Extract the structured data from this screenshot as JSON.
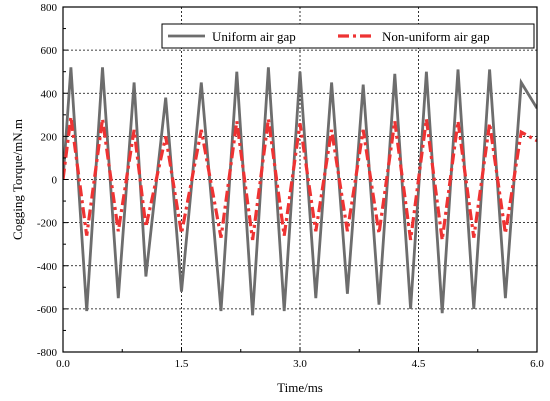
{
  "chart_data": {
    "type": "line",
    "xlabel": "Time/ms",
    "ylabel": "Cogging Torque/mN.m",
    "xlim": [
      0,
      6
    ],
    "ylim": [
      -800,
      800
    ],
    "x_ticks": [
      0,
      1.5,
      3,
      4.5,
      6
    ],
    "x_tick_labels": [
      "0.0",
      "1.5",
      "3.0",
      "4.5",
      "6.0"
    ],
    "y_ticks": [
      -800,
      -600,
      -400,
      -200,
      0,
      200,
      400,
      600,
      800
    ],
    "y_tick_labels": [
      "-800",
      "-600",
      "-400",
      "-200",
      "0",
      "200",
      "400",
      "600",
      "800"
    ],
    "grid": true,
    "legend_position": "top-right",
    "series": [
      {
        "name": "Uniform air gap",
        "color": "#6d6d6d",
        "style": "solid",
        "points": [
          [
            0.0,
            0
          ],
          [
            0.1,
            520
          ],
          [
            0.3,
            -610
          ],
          [
            0.5,
            520
          ],
          [
            0.7,
            -550
          ],
          [
            0.9,
            450
          ],
          [
            1.05,
            -450
          ],
          [
            1.3,
            380
          ],
          [
            1.5,
            -520
          ],
          [
            1.75,
            450
          ],
          [
            2.0,
            -610
          ],
          [
            2.2,
            500
          ],
          [
            2.4,
            -630
          ],
          [
            2.6,
            520
          ],
          [
            2.8,
            -610
          ],
          [
            3.0,
            500
          ],
          [
            3.2,
            -550
          ],
          [
            3.4,
            450
          ],
          [
            3.6,
            -530
          ],
          [
            3.8,
            440
          ],
          [
            4.0,
            -580
          ],
          [
            4.2,
            490
          ],
          [
            4.4,
            -600
          ],
          [
            4.6,
            500
          ],
          [
            4.8,
            -620
          ],
          [
            5.0,
            510
          ],
          [
            5.2,
            -600
          ],
          [
            5.4,
            510
          ],
          [
            5.6,
            -550
          ],
          [
            5.8,
            450
          ],
          [
            6.0,
            330
          ]
        ]
      },
      {
        "name": "Non-uniform air gap",
        "color": "#ee3333",
        "style": "dashdot",
        "points": [
          [
            0.0,
            0
          ],
          [
            0.1,
            290
          ],
          [
            0.3,
            -260
          ],
          [
            0.5,
            280
          ],
          [
            0.7,
            -240
          ],
          [
            0.9,
            230
          ],
          [
            1.05,
            -220
          ],
          [
            1.3,
            200
          ],
          [
            1.5,
            -250
          ],
          [
            1.75,
            230
          ],
          [
            2.0,
            -270
          ],
          [
            2.2,
            270
          ],
          [
            2.4,
            -280
          ],
          [
            2.6,
            280
          ],
          [
            2.8,
            -260
          ],
          [
            3.0,
            260
          ],
          [
            3.2,
            -240
          ],
          [
            3.4,
            230
          ],
          [
            3.6,
            -240
          ],
          [
            3.8,
            230
          ],
          [
            4.0,
            -250
          ],
          [
            4.2,
            270
          ],
          [
            4.4,
            -280
          ],
          [
            4.6,
            280
          ],
          [
            4.8,
            -280
          ],
          [
            5.0,
            270
          ],
          [
            5.2,
            -270
          ],
          [
            5.4,
            260
          ],
          [
            5.6,
            -250
          ],
          [
            5.8,
            220
          ],
          [
            6.0,
            180
          ]
        ]
      }
    ]
  }
}
